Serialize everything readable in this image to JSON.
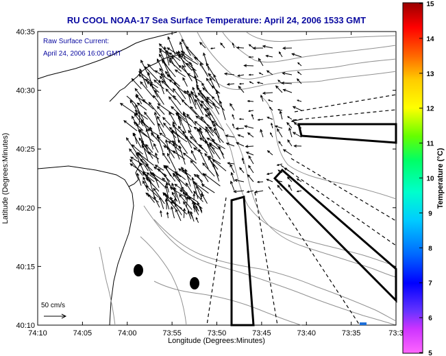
{
  "title": "RU COOL  NOAA-17  Sea Surface Temperature:  April 24, 2006 1533 GMT",
  "annotation_line1": "Raw Surface Current:",
  "annotation_line2": "April 24, 2006 16:00 GMT",
  "scale_label": "50 cm/s",
  "xlabel": "Longitude (Degrees:Minutes)",
  "ylabel": "Latitude (Degrees:Minutes)",
  "colorbar_label": "Temperature (°C)",
  "x_ticks": [
    "74:10",
    "74:05",
    "74:00",
    "73:55",
    "73:50",
    "73:45",
    "73:40",
    "73:35",
    "73:3"
  ],
  "y_ticks": [
    "40:35",
    "40:30",
    "40:25",
    "40:20",
    "40:15",
    "40:10"
  ],
  "colorbar_ticks": [
    "15",
    "14",
    "13",
    "12",
    "11",
    "10",
    "9",
    "8",
    "7",
    "6",
    "5"
  ],
  "colors": {
    "title": "#0a0aa0",
    "land": "#ffffff",
    "coast": "#000000",
    "bathymetry": "#909090"
  }
}
